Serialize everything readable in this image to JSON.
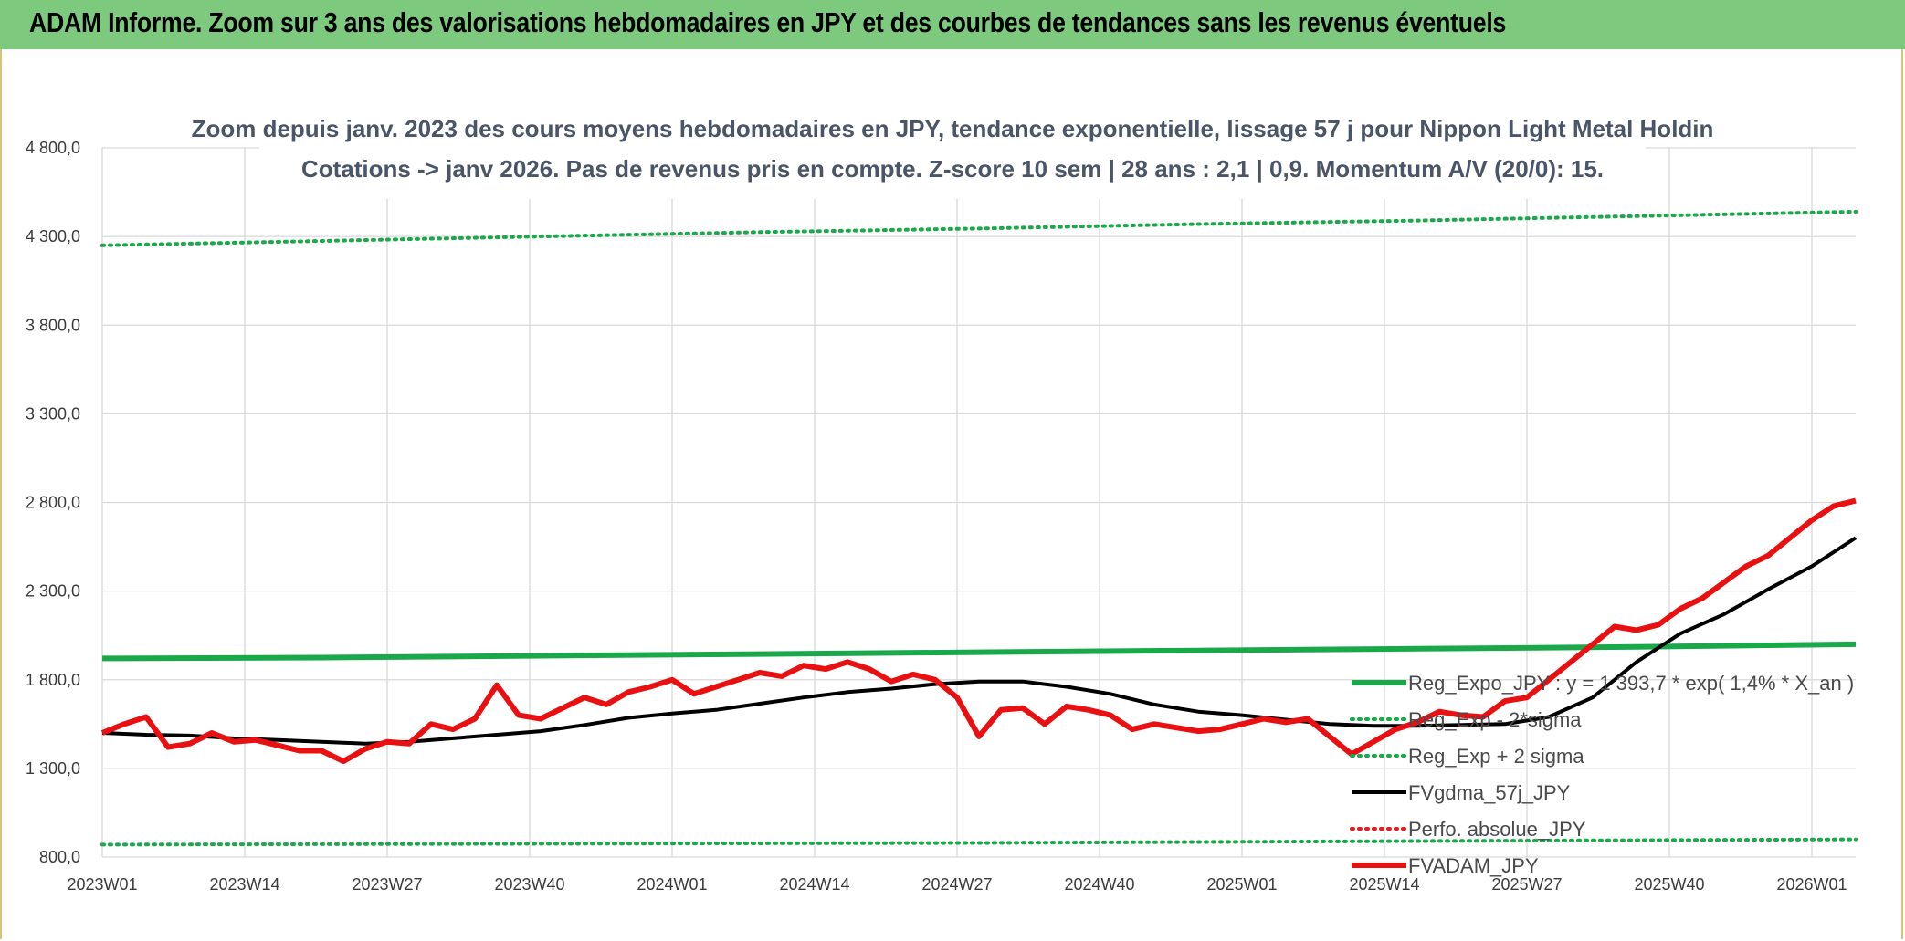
{
  "banner": {
    "title": "ADAM Informe. Zoom sur 3 ans des valorisations hebdomadaires en JPY et des courbes de tendances sans les revenus éventuels"
  },
  "colors": {
    "banner_bg": "#7dc97d",
    "reg_expo": "#1aa84a",
    "bands": "#1aa84a",
    "fvgdma": "#000000",
    "perfo": "#e02020",
    "fvadam": "#e81010",
    "grid": "#d9d9d9"
  },
  "chart_data": {
    "type": "line",
    "title_lines": [
      "Zoom depuis janv. 2023 des cours moyens hebdomadaires en JPY, tendance exponentielle, lissage 57 j pour Nippon Light Metal Holdin",
      "Cotations -> janv 2026. Pas de revenus pris en compte. Z-score 10 sem | 28 ans : 2,1 | 0,9. Momentum A/V (20/0): 15."
    ],
    "xlabel": "",
    "ylabel": "",
    "ylim": [
      800,
      4800
    ],
    "yticks": [
      "800,0",
      "1 300,0",
      "1 800,0",
      "2 300,0",
      "2 800,0",
      "3 300,0",
      "3 800,0",
      "4 300,0",
      "4 800,0"
    ],
    "ytick_values": [
      800,
      1300,
      1800,
      2300,
      2800,
      3300,
      3800,
      4300,
      4800
    ],
    "xticks": [
      "2023W01",
      "2023W14",
      "2023W27",
      "2023W40",
      "2024W01",
      "2024W14",
      "2024W27",
      "2024W40",
      "2025W01",
      "2025W14",
      "2025W27",
      "2025W40",
      "2026W01"
    ],
    "grid": true,
    "legend_position": "right",
    "series": [
      {
        "name": "Reg_Expo_JPY : y = 1 393,7 * exp( 1,4% * X_an )",
        "style": "solid-thick",
        "color": "#1aa84a",
        "x": [
          0,
          20,
          40,
          60,
          80,
          100,
          120,
          140,
          160
        ],
        "values": [
          1920,
          1925,
          1935,
          1945,
          1955,
          1965,
          1975,
          1985,
          2000
        ]
      },
      {
        "name": "Reg_Exp - 2*sigma",
        "style": "dotted",
        "color": "#1aa84a",
        "x": [
          0,
          40,
          80,
          120,
          160
        ],
        "values": [
          870,
          875,
          880,
          890,
          900
        ]
      },
      {
        "name": "Reg_Exp + 2 sigma",
        "style": "dotted",
        "color": "#1aa84a",
        "x": [
          0,
          20,
          40,
          60,
          80,
          100,
          120,
          140,
          160
        ],
        "values": [
          4250,
          4275,
          4300,
          4325,
          4345,
          4370,
          4390,
          4415,
          4440
        ]
      },
      {
        "name": "FVgdma_57j_JPY",
        "style": "solid",
        "color": "#000000",
        "x": [
          0,
          4,
          8,
          12,
          16,
          20,
          24,
          28,
          32,
          36,
          40,
          44,
          48,
          52,
          56,
          60,
          64,
          68,
          72,
          76,
          80,
          84,
          88,
          92,
          96,
          100,
          104,
          108,
          112,
          116,
          120,
          124,
          128,
          132,
          136,
          140,
          144,
          148,
          152,
          156,
          160
        ],
        "values": [
          1500,
          1490,
          1485,
          1470,
          1460,
          1450,
          1440,
          1450,
          1470,
          1490,
          1510,
          1545,
          1585,
          1610,
          1630,
          1665,
          1700,
          1730,
          1750,
          1775,
          1790,
          1790,
          1760,
          1720,
          1660,
          1620,
          1600,
          1575,
          1550,
          1540,
          1540,
          1545,
          1550,
          1590,
          1700,
          1900,
          2060,
          2170,
          2310,
          2440,
          2600
        ]
      },
      {
        "name": "Perfo. absolue_JPY",
        "style": "dotted",
        "color": "#e02020",
        "x": [],
        "values": []
      },
      {
        "name": "FVADAM_JPY",
        "style": "solid-thick",
        "color": "#e81010",
        "x": [
          0,
          2,
          4,
          6,
          8,
          10,
          12,
          14,
          16,
          18,
          20,
          22,
          24,
          26,
          28,
          30,
          32,
          34,
          36,
          38,
          40,
          42,
          44,
          46,
          48,
          50,
          52,
          54,
          56,
          58,
          60,
          62,
          64,
          66,
          68,
          70,
          72,
          74,
          76,
          78,
          80,
          82,
          84,
          86,
          88,
          90,
          92,
          94,
          96,
          98,
          100,
          102,
          104,
          106,
          108,
          110,
          112,
          114,
          116,
          118,
          120,
          122,
          124,
          126,
          128,
          130,
          132,
          134,
          136,
          138,
          140,
          142,
          144,
          146,
          148,
          150,
          152,
          154,
          156,
          158,
          160
        ],
        "values": [
          1500,
          1550,
          1590,
          1420,
          1440,
          1500,
          1450,
          1460,
          1430,
          1400,
          1400,
          1340,
          1410,
          1450,
          1440,
          1550,
          1520,
          1580,
          1770,
          1600,
          1580,
          1640,
          1700,
          1660,
          1730,
          1760,
          1800,
          1720,
          1760,
          1800,
          1840,
          1820,
          1880,
          1860,
          1900,
          1860,
          1790,
          1830,
          1800,
          1700,
          1480,
          1630,
          1640,
          1550,
          1650,
          1630,
          1600,
          1520,
          1550,
          1530,
          1510,
          1520,
          1550,
          1580,
          1560,
          1580,
          1480,
          1380,
          1450,
          1520,
          1560,
          1620,
          1600,
          1590,
          1680,
          1700,
          1800,
          1900,
          2000,
          2100,
          2080,
          2110,
          2200,
          2260,
          2350,
          2440,
          2500,
          2600,
          2700,
          2780,
          2810
        ]
      }
    ]
  }
}
